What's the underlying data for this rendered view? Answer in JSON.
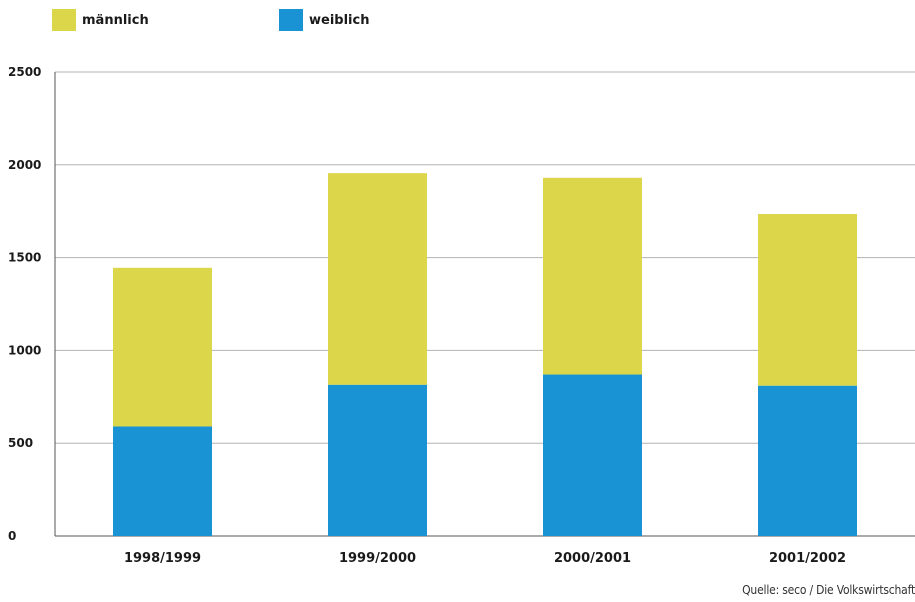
{
  "chart_data": {
    "type": "bar",
    "stacked": true,
    "categories": [
      "1998/1999",
      "1999/2000",
      "2000/2001",
      "2001/2002"
    ],
    "series": [
      {
        "name": "weiblich",
        "color": "#1a93d4",
        "values": [
          590,
          815,
          870,
          810
        ]
      },
      {
        "name": "männlich",
        "color": "#dcd64b",
        "values": [
          855,
          1140,
          1060,
          925
        ]
      }
    ],
    "ylim": [
      0,
      2500
    ],
    "yticks": [
      0,
      500,
      1000,
      1500,
      2000,
      2500
    ],
    "grid": true,
    "legend": "top-left"
  },
  "legend": {
    "items": [
      {
        "label": "männlich",
        "color": "#dcd64b"
      },
      {
        "label": "weiblich",
        "color": "#1a93d4"
      }
    ]
  },
  "source": "Quelle: seco / Die Volkswirtschaft"
}
